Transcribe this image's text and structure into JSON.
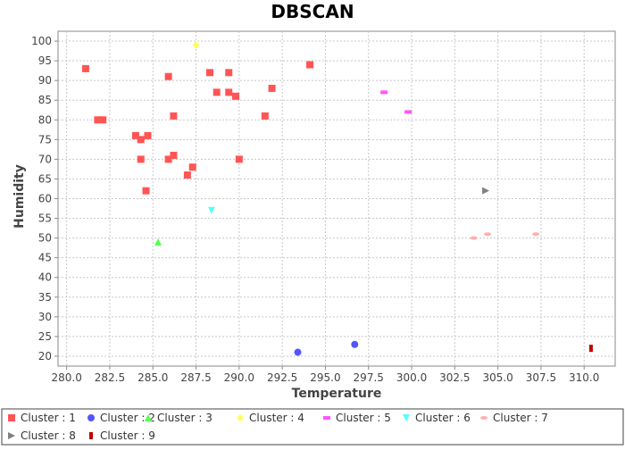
{
  "chart_data": {
    "type": "scatter",
    "title": "DBSCAN",
    "xlabel": "Temperature",
    "ylabel": "Humidity",
    "xlim": [
      279.5,
      311.8
    ],
    "ylim": [
      17.5,
      102.5
    ],
    "xticks": [
      "280.0",
      "282.5",
      "285.0",
      "287.5",
      "290.0",
      "292.5",
      "295.0",
      "297.5",
      "300.0",
      "302.5",
      "305.0",
      "307.5",
      "310.0"
    ],
    "yticks": [
      "20",
      "25",
      "30",
      "35",
      "40",
      "45",
      "50",
      "55",
      "60",
      "65",
      "70",
      "75",
      "80",
      "85",
      "90",
      "95",
      "100"
    ],
    "grid": true,
    "legend_position": "bottom",
    "series": [
      {
        "name": "Cluster : 1",
        "marker": "square",
        "color": "#ff5555",
        "points": [
          [
            281.1,
            93
          ],
          [
            281.8,
            80
          ],
          [
            282.1,
            80
          ],
          [
            284.0,
            76
          ],
          [
            284.3,
            75
          ],
          [
            284.7,
            76
          ],
          [
            284.3,
            70
          ],
          [
            284.6,
            62
          ],
          [
            285.9,
            91
          ],
          [
            285.9,
            70
          ],
          [
            286.2,
            71
          ],
          [
            286.2,
            81
          ],
          [
            287.0,
            66
          ],
          [
            287.3,
            68
          ],
          [
            288.3,
            92
          ],
          [
            288.7,
            87
          ],
          [
            289.4,
            92
          ],
          [
            289.4,
            87
          ],
          [
            289.8,
            86
          ],
          [
            290.0,
            70
          ],
          [
            291.5,
            81
          ],
          [
            291.9,
            88
          ],
          [
            294.1,
            94
          ]
        ]
      },
      {
        "name": "Cluster : 2",
        "marker": "circle",
        "color": "#5555ff",
        "points": [
          [
            293.4,
            21
          ],
          [
            296.7,
            23
          ]
        ]
      },
      {
        "name": "Cluster : 3",
        "marker": "triangle-up",
        "color": "#55ff55",
        "points": [
          [
            285.3,
            49
          ]
        ]
      },
      {
        "name": "Cluster : 4",
        "marker": "diamond",
        "color": "#ffff55",
        "points": [
          [
            287.5,
            99
          ]
        ]
      },
      {
        "name": "Cluster : 5",
        "marker": "hbar",
        "color": "#ff55ff",
        "points": [
          [
            298.4,
            87
          ],
          [
            299.8,
            82
          ]
        ]
      },
      {
        "name": "Cluster : 6",
        "marker": "triangle-down",
        "color": "#55ffff",
        "points": [
          [
            288.4,
            57
          ]
        ]
      },
      {
        "name": "Cluster : 7",
        "marker": "ellipse",
        "color": "#ffafaf",
        "points": [
          [
            303.6,
            50
          ],
          [
            304.4,
            51
          ],
          [
            307.2,
            51
          ]
        ]
      },
      {
        "name": "Cluster : 8",
        "marker": "triangle-right",
        "color": "#808080",
        "points": [
          [
            304.3,
            62
          ]
        ]
      },
      {
        "name": "Cluster : 9",
        "marker": "vbar",
        "color": "#c00000",
        "points": [
          [
            310.4,
            22
          ]
        ]
      }
    ]
  }
}
